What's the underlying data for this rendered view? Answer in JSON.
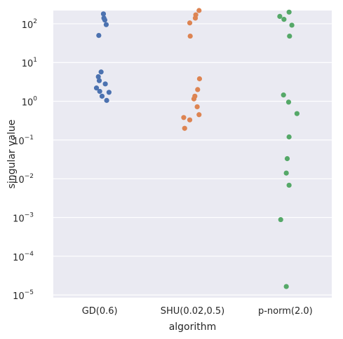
{
  "chart_data": {
    "type": "scatter",
    "subtype": "strip",
    "xlabel": "algorithm",
    "ylabel": "singular value",
    "yscale": "log",
    "ylim": [
      8.5e-06,
      220
    ],
    "grid": true,
    "categories": [
      "GD(0.6)",
      "SHU(0.02,0.5)",
      "p-norm(2.0)"
    ],
    "ytick_labels": [
      {
        "base": "10",
        "exp": "2"
      },
      {
        "base": "10",
        "exp": "1"
      },
      {
        "base": "10",
        "exp": "0"
      },
      {
        "base": "10",
        "exp": "−1"
      },
      {
        "base": "10",
        "exp": "−2"
      },
      {
        "base": "10",
        "exp": "−3"
      },
      {
        "base": "10",
        "exp": "−4"
      },
      {
        "base": "10",
        "exp": "−5"
      }
    ],
    "colors": {
      "background": "#eaeaf2",
      "grid": "#ffffff",
      "GD(0.6)": "#4c72b0",
      "SHU(0.02,0.5)": "#dd8452",
      "p-norm(2.0)": "#55a868"
    },
    "series": [
      {
        "category": "GD(0.6)",
        "points": [
          {
            "jitter": 0.08,
            "y": 180
          },
          {
            "jitter": 0.09,
            "y": 140
          },
          {
            "jitter": 0.11,
            "y": 125
          },
          {
            "jitter": 0.14,
            "y": 95
          },
          {
            "jitter": -0.02,
            "y": 50
          },
          {
            "jitter": 0.03,
            "y": 5.7
          },
          {
            "jitter": -0.03,
            "y": 4.3
          },
          {
            "jitter": -0.01,
            "y": 3.4
          },
          {
            "jitter": 0.12,
            "y": 2.8
          },
          {
            "jitter": -0.07,
            "y": 2.2
          },
          {
            "jitter": 0.2,
            "y": 1.7
          },
          {
            "jitter": 0.0,
            "y": 1.8
          },
          {
            "jitter": 0.05,
            "y": 1.35
          },
          {
            "jitter": 0.15,
            "y": 1.05
          }
        ]
      },
      {
        "category": "SHU(0.02,0.5)",
        "points": [
          {
            "jitter": 0.14,
            "y": 220
          },
          {
            "jitter": 0.07,
            "y": 170
          },
          {
            "jitter": 0.06,
            "y": 140
          },
          {
            "jitter": -0.06,
            "y": 105
          },
          {
            "jitter": -0.05,
            "y": 48
          },
          {
            "jitter": 0.15,
            "y": 3.8
          },
          {
            "jitter": 0.11,
            "y": 2.0
          },
          {
            "jitter": 0.05,
            "y": 1.35
          },
          {
            "jitter": 0.03,
            "y": 1.15
          },
          {
            "jitter": 0.1,
            "y": 0.72
          },
          {
            "jitter": 0.14,
            "y": 0.45
          },
          {
            "jitter": -0.19,
            "y": 0.38
          },
          {
            "jitter": -0.06,
            "y": 0.33
          },
          {
            "jitter": -0.17,
            "y": 0.2
          }
        ]
      },
      {
        "category": "p-norm(2.0)",
        "points": [
          {
            "jitter": 0.08,
            "y": 200
          },
          {
            "jitter": -0.12,
            "y": 155
          },
          {
            "jitter": -0.03,
            "y": 130
          },
          {
            "jitter": 0.14,
            "y": 92
          },
          {
            "jitter": 0.09,
            "y": 48
          },
          {
            "jitter": -0.04,
            "y": 1.45
          },
          {
            "jitter": 0.07,
            "y": 0.95
          },
          {
            "jitter": 0.25,
            "y": 0.48
          },
          {
            "jitter": 0.08,
            "y": 0.12
          },
          {
            "jitter": 0.04,
            "y": 0.033
          },
          {
            "jitter": 0.02,
            "y": 0.014
          },
          {
            "jitter": 0.08,
            "y": 0.0068
          },
          {
            "jitter": -0.1,
            "y": 0.00088
          },
          {
            "jitter": 0.02,
            "y": 1.65e-05
          }
        ]
      }
    ]
  }
}
